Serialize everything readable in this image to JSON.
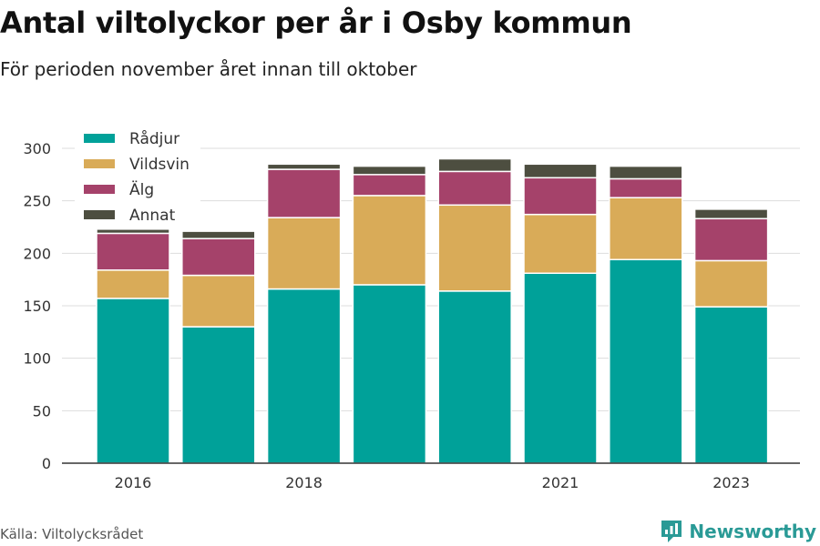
{
  "title": "Antal viltolyckor per år i Osby kommun",
  "subtitle": "För perioden november året innan till oktober",
  "source": "Källa: Viltolycksrådet",
  "brand": "Newsworthy",
  "brand_icon": "newsworthy-logo-icon",
  "colors": {
    "grid": "#dddddd",
    "axis": "#333333",
    "text": "#333333",
    "brand": "#2a9a96"
  },
  "chart_data": {
    "type": "bar",
    "stacked": true,
    "categories": [
      "2016",
      "2017",
      "2018",
      "2019",
      "2020",
      "2021",
      "2022",
      "2023"
    ],
    "x_tick_labels": [
      "2016",
      "",
      "2018",
      "",
      "",
      "2021",
      "",
      "2023"
    ],
    "series": [
      {
        "name": "Rådjur",
        "color": "#00a199",
        "values": [
          157,
          130,
          166,
          170,
          164,
          181,
          194,
          149
        ]
      },
      {
        "name": "Vildsvin",
        "color": "#d9ab58",
        "values": [
          27,
          49,
          68,
          85,
          82,
          56,
          59,
          44
        ]
      },
      {
        "name": "Älg",
        "color": "#a5426a",
        "values": [
          35,
          35,
          46,
          20,
          32,
          35,
          18,
          40
        ]
      },
      {
        "name": "Annat",
        "color": "#4d4e40",
        "values": [
          4,
          7,
          5,
          8,
          12,
          13,
          12,
          9
        ]
      }
    ],
    "ylim": [
      0,
      300
    ],
    "yticks": [
      0,
      50,
      100,
      150,
      200,
      250,
      300
    ],
    "xlabel": "",
    "ylabel": "",
    "grid": true,
    "legend_position": "top-left"
  }
}
